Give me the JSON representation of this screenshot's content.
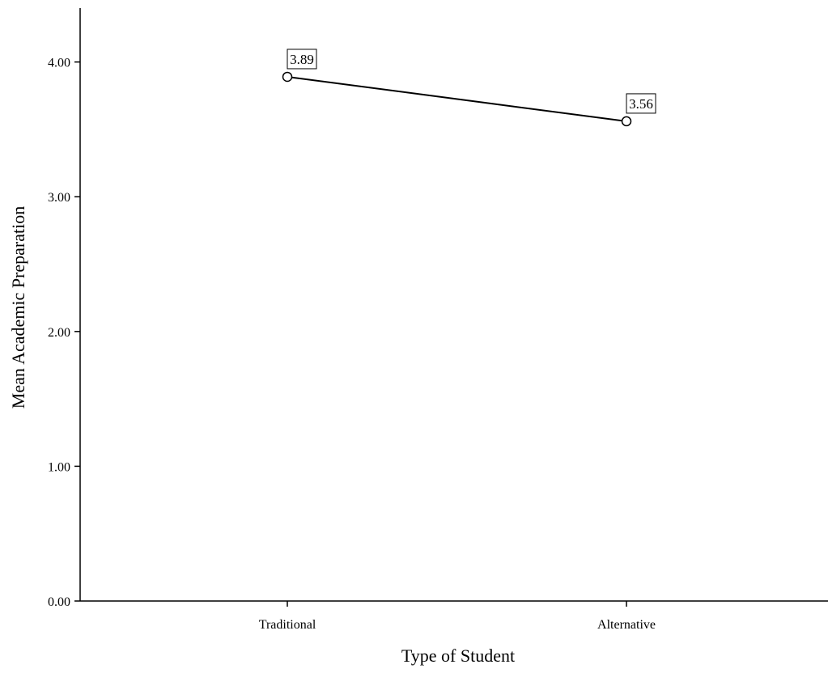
{
  "chart_data": {
    "type": "line",
    "title": "",
    "xlabel": "Type of Student",
    "ylabel": "Mean Academic Preparation",
    "categories": [
      "Traditional",
      "Alternative"
    ],
    "series": [
      {
        "values": [
          3.89,
          3.56
        ],
        "data_labels": [
          "3.89",
          "3.56"
        ]
      }
    ],
    "ylim": [
      0,
      4.4
    ],
    "yticks": [
      0,
      1,
      2,
      3,
      4
    ],
    "ytick_labels": [
      "0.00",
      "1.00",
      "2.00",
      "3.00",
      "4.00"
    ],
    "grid": false,
    "legend": "none",
    "line_color": "#000000",
    "marker": "open-circle"
  }
}
